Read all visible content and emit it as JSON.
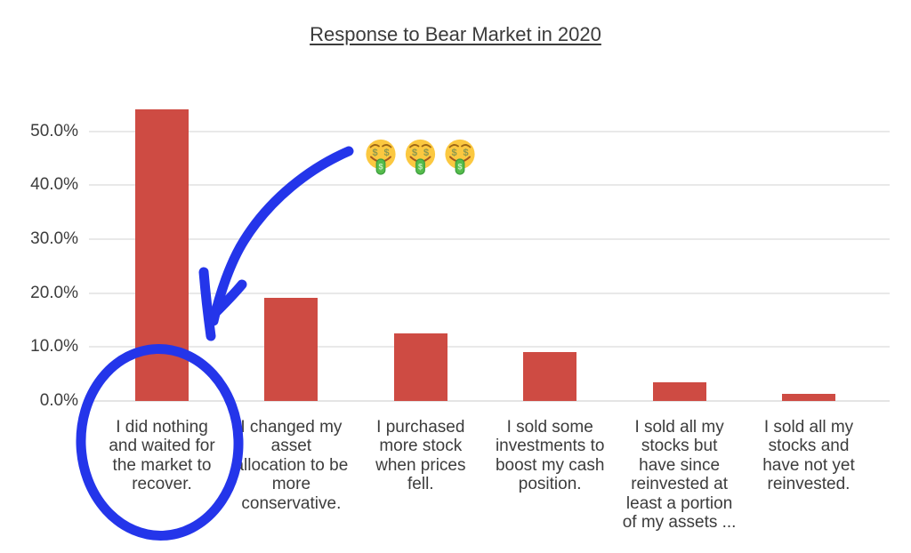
{
  "chart_data": {
    "type": "bar",
    "title": "Response to Bear Market in 2020",
    "categories": [
      "I did nothing\nand waited for\nthe market to\nrecover.",
      "I changed my\nasset\nallocation to be\nmore\nconservative.",
      "I purchased\nmore stock\nwhen prices\nfell.",
      "I sold some\ninvestments to\nboost my cash\nposition.",
      "I sold all my\nstocks but\nhave since\nreinvested at\nleast a portion\nof my assets ...",
      "I sold all my\nstocks and\nhave not yet\nreinvested."
    ],
    "values": [
      54.0,
      19.1,
      12.6,
      9.0,
      3.4,
      1.3
    ],
    "value_unit": "%",
    "ytick_labels": [
      "0.0%",
      "10.0%",
      "20.0%",
      "30.0%",
      "40.0%",
      "50.0%"
    ],
    "yticks": [
      0,
      10,
      20,
      30,
      40,
      50
    ],
    "ylim": [
      0,
      57.5
    ],
    "xlabel": "",
    "ylabel": "",
    "grid": true,
    "legend_position": "none",
    "bar_color": "#ce4b43"
  },
  "annotations": {
    "emoji_row": {
      "icon": "money-mouth-face",
      "char": "🤑🤑🤑",
      "count": 3
    },
    "circle": {
      "around_category": "I did nothing and waited for the market to recover.",
      "color": "#2435ea"
    },
    "arrow": {
      "points_to": "tallest bar / circled label",
      "color": "#2435ea"
    }
  },
  "colors": {
    "bar": "#ce4b43",
    "annotation_blue": "#2435ea",
    "grid": "#e9e9e9",
    "axis_text": "#3c3c3c",
    "title_text": "#3b3b3b",
    "emoji_face": "#fbc840",
    "emoji_tongue": "#55bc4b"
  }
}
